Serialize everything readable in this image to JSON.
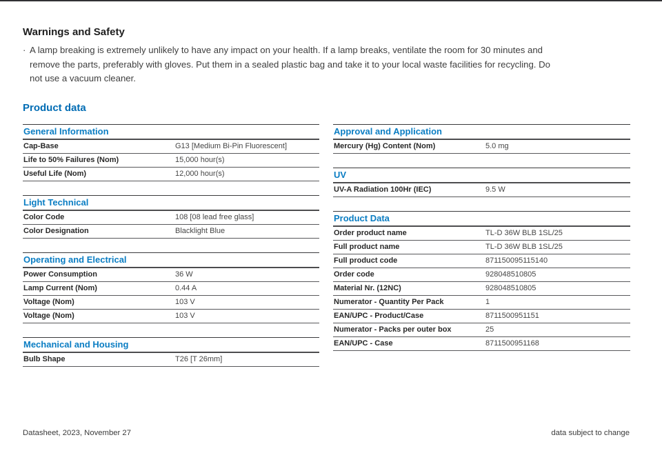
{
  "page": {
    "warnings_title": "Warnings and Safety",
    "bullet": "·",
    "warning_lines": [
      "A lamp breaking is extremely unlikely to have any impact on your health. If a lamp breaks, ventilate the room for 30 minutes and",
      "remove the parts, preferably with gloves. Put them in a sealed plastic bag and take it to your local waste facilities for recycling. Do",
      "not use a vacuum cleaner."
    ],
    "product_data_title": "Product data",
    "footer_left": "Datasheet, 2023, November 27",
    "footer_right": "data subject to change"
  },
  "colors": {
    "page_title_blue": "#006cb4",
    "section_heading_blue": "#0a7dc3",
    "rule_dark": "#39393b",
    "label_dark": "#282828",
    "value_gray": "#454545"
  },
  "tables": {
    "left": [
      {
        "title": "General Information",
        "rows": [
          {
            "label": "Cap-Base",
            "value": "G13 [Medium Bi-Pin Fluorescent]"
          },
          {
            "label": "Life to 50% Failures (Nom)",
            "value": "15,000 hour(s)"
          },
          {
            "label": "Useful Life (Nom)",
            "value": "12,000 hour(s)"
          }
        ]
      },
      {
        "title": "Light Technical",
        "rows": [
          {
            "label": "Color Code",
            "value": "108 [08 lead free glass]"
          },
          {
            "label": "Color Designation",
            "value": "Blacklight Blue"
          }
        ]
      },
      {
        "title": "Operating and Electrical",
        "rows": [
          {
            "label": "Power Consumption",
            "value": "36 W"
          },
          {
            "label": "Lamp Current (Nom)",
            "value": "0.44 A"
          },
          {
            "label": "Voltage (Nom)",
            "value": "103 V"
          },
          {
            "label": "Voltage (Nom)",
            "value": "103 V"
          }
        ]
      },
      {
        "title": "Mechanical and Housing",
        "rows": [
          {
            "label": "Bulb Shape",
            "value": "T26 [T 26mm]"
          }
        ]
      }
    ],
    "right": [
      {
        "title": "Approval and Application",
        "rows": [
          {
            "label": "Mercury (Hg) Content (Nom)",
            "value": "5.0 mg"
          }
        ]
      },
      {
        "title": "UV",
        "rows": [
          {
            "label": "UV-A Radiation 100Hr (IEC)",
            "value": "9.5 W"
          }
        ]
      },
      {
        "title": "Product Data",
        "rows": [
          {
            "label": "Order product name",
            "value": "TL-D 36W BLB 1SL/25"
          },
          {
            "label": "Full product name",
            "value": "TL-D 36W BLB 1SL/25"
          },
          {
            "label": "Full product code",
            "value": "871150095115140"
          },
          {
            "label": "Order code",
            "value": "928048510805"
          },
          {
            "label": "Material Nr. (12NC)",
            "value": "928048510805"
          },
          {
            "label": "Numerator - Quantity Per Pack",
            "value": "1"
          },
          {
            "label": "EAN/UPC - Product/Case",
            "value": "8711500951151"
          },
          {
            "label": "Numerator - Packs per outer box",
            "value": "25"
          },
          {
            "label": "EAN/UPC - Case",
            "value": "8711500951168"
          }
        ]
      }
    ]
  }
}
